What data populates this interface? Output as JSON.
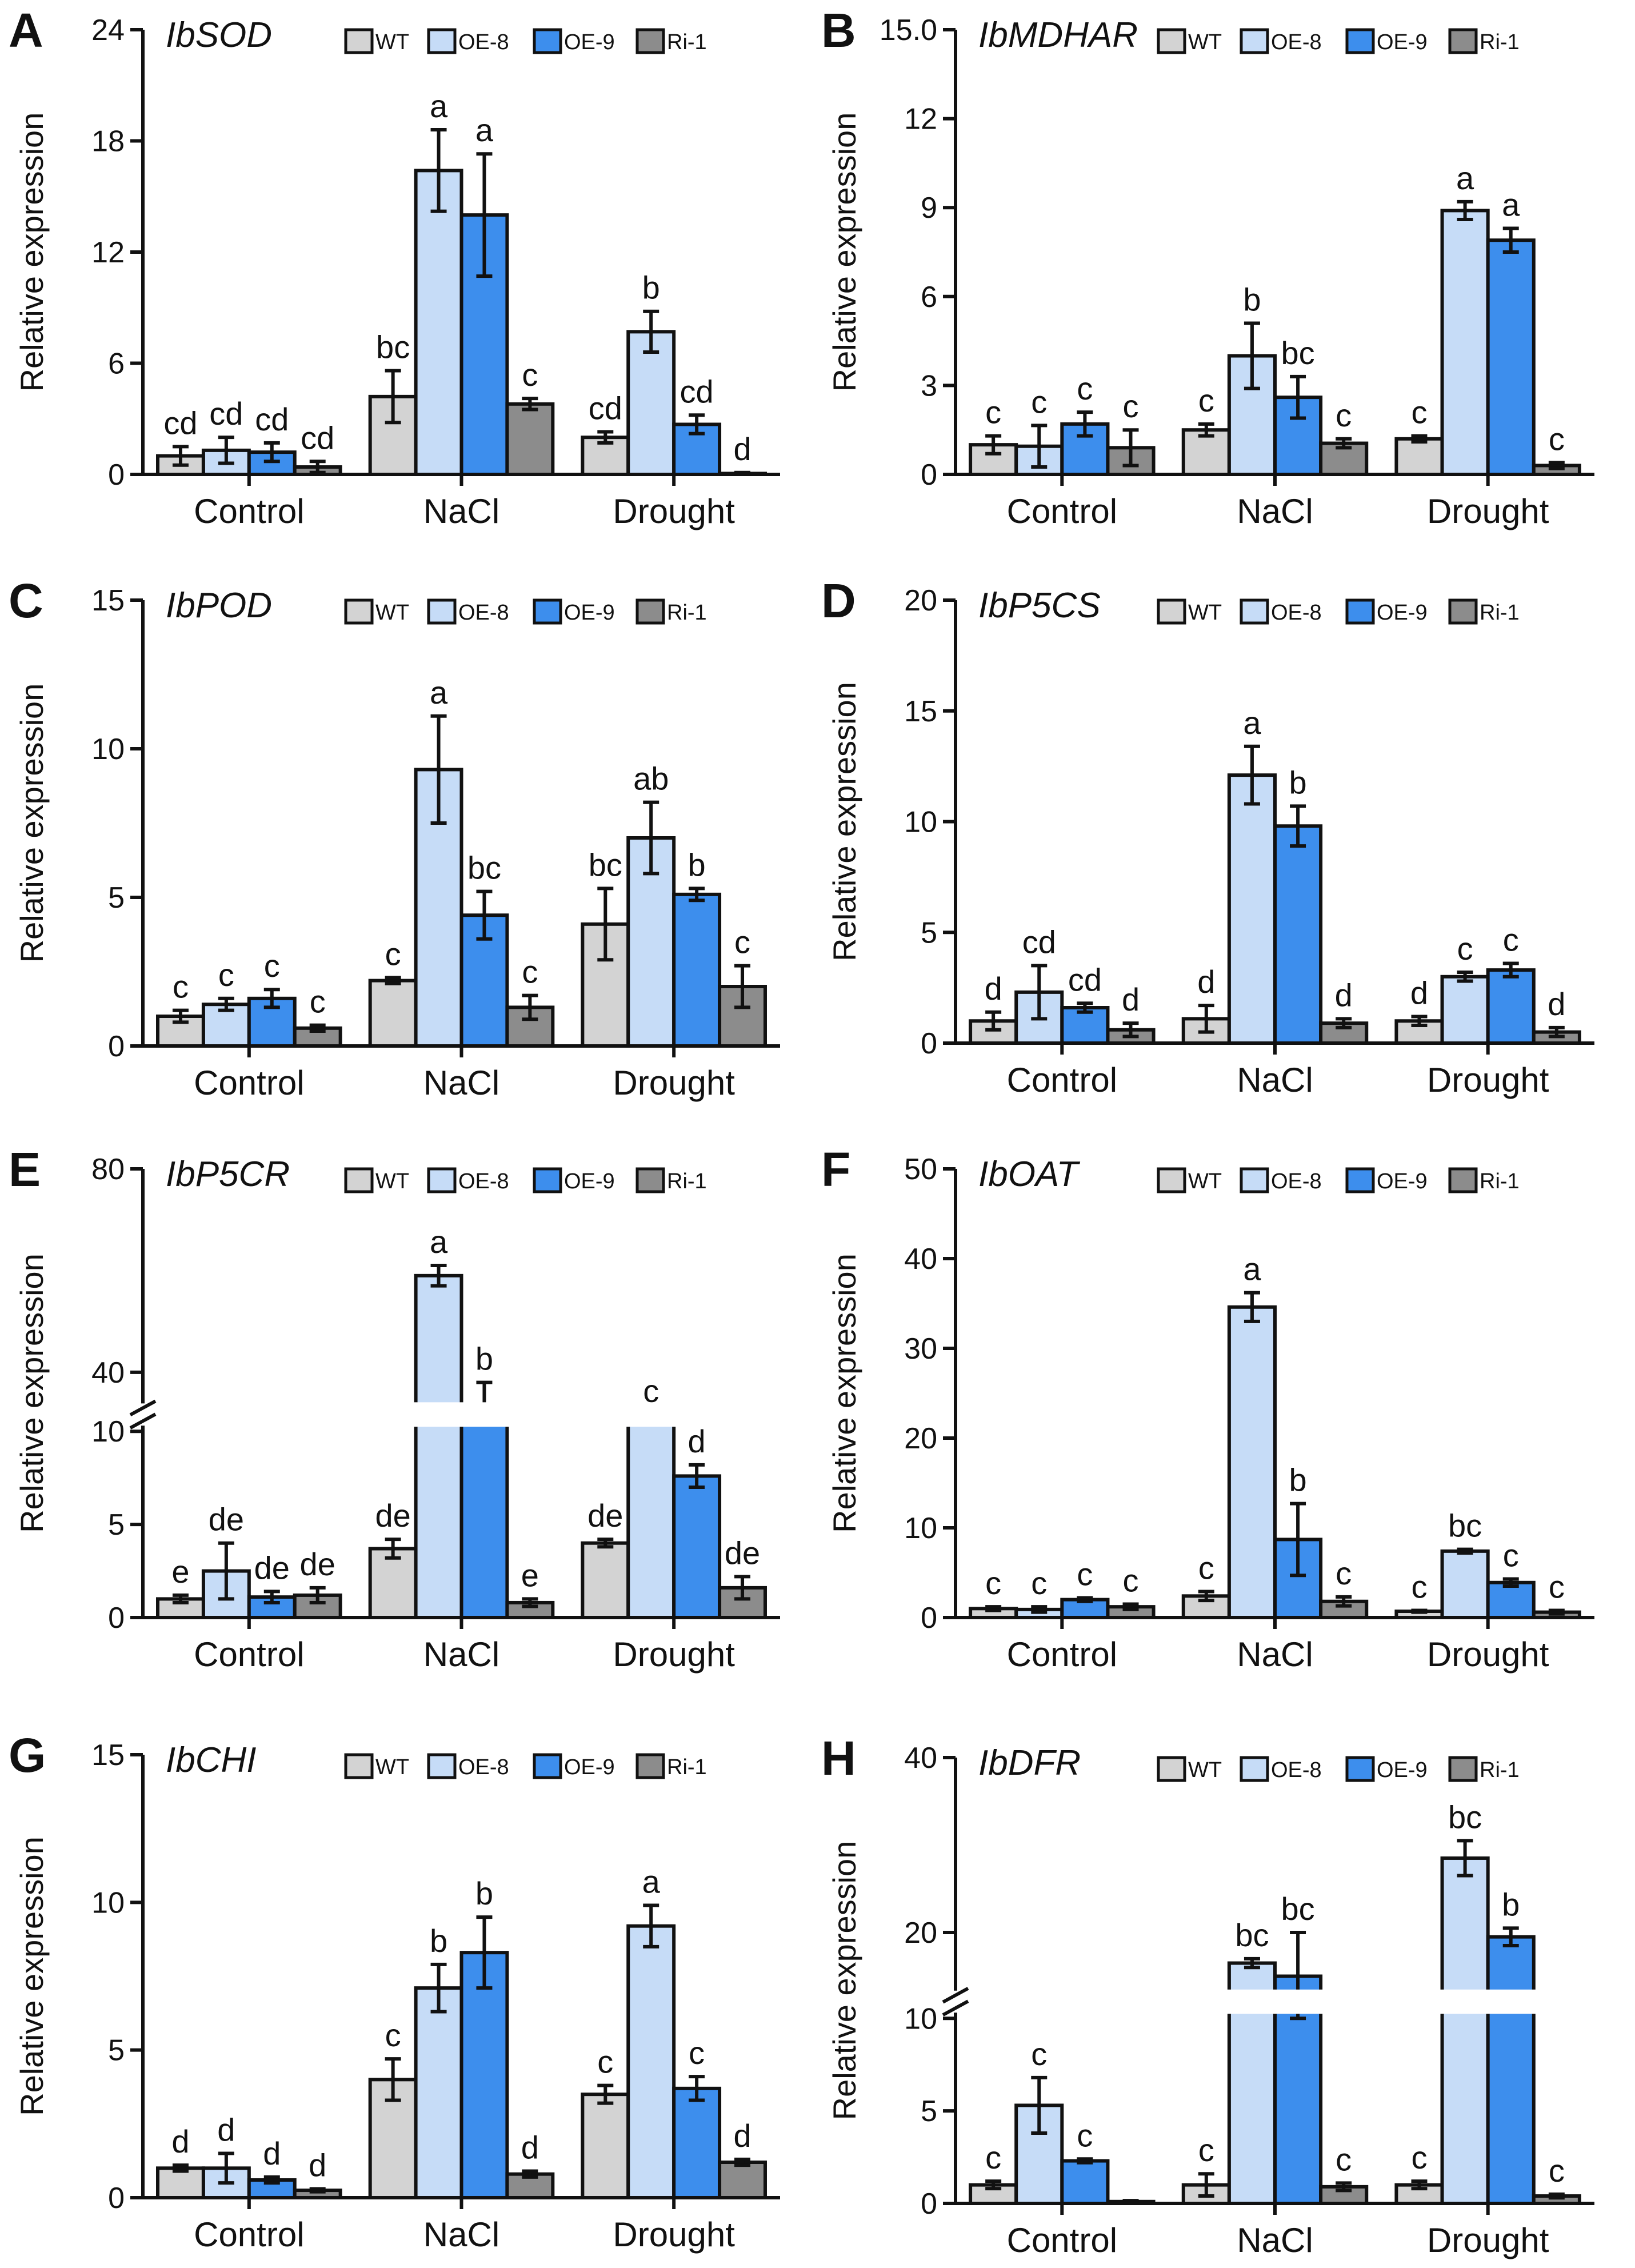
{
  "figure": {
    "colors": {
      "WT": "#d3d3d3",
      "OE-8": "#c6dcf7",
      "OE-9": "#3d8eed",
      "Ri-1": "#8c8c8c"
    }
  },
  "chart_data": [
    {
      "panel": "A",
      "title": "IbSOD",
      "type": "bar",
      "ylabel": "Relative expression",
      "categories": [
        "Control",
        "NaCl",
        "Drought"
      ],
      "ylim": [
        0,
        24
      ],
      "yticks": [
        "0",
        "6",
        "12",
        "18",
        "24"
      ],
      "ytick_values": [
        0,
        6,
        12,
        18,
        24
      ],
      "legend": [
        "WT",
        "OE-8",
        "OE-9",
        "Ri-1"
      ],
      "series": [
        {
          "name": "WT",
          "values": [
            1.0,
            4.2,
            2.0
          ],
          "errors": [
            0.5,
            1.4,
            0.3
          ],
          "labels": [
            "cd",
            "bc",
            "cd"
          ]
        },
        {
          "name": "OE-8",
          "values": [
            1.3,
            16.4,
            7.7
          ],
          "errors": [
            0.7,
            2.2,
            1.1
          ],
          "labels": [
            "cd",
            "a",
            "b"
          ]
        },
        {
          "name": "OE-9",
          "values": [
            1.2,
            14.0,
            2.7
          ],
          "errors": [
            0.5,
            3.3,
            0.5
          ],
          "labels": [
            "cd",
            "a",
            "cd"
          ]
        },
        {
          "name": "Ri-1",
          "values": [
            0.4,
            3.8,
            0.05
          ],
          "errors": [
            0.3,
            0.3,
            0.05
          ],
          "labels": [
            "cd",
            "c",
            "d"
          ]
        }
      ]
    },
    {
      "panel": "B",
      "title": "IbMDHAR",
      "type": "bar",
      "ylabel": "Relative expression",
      "categories": [
        "Control",
        "NaCl",
        "Drought"
      ],
      "ylim": [
        0,
        15
      ],
      "yticks": [
        "0",
        "3",
        "6",
        "9",
        "12",
        "15.0"
      ],
      "ytick_values": [
        0,
        3,
        6,
        9,
        12,
        15
      ],
      "legend": [
        "WT",
        "OE-8",
        "OE-9",
        "Ri-1"
      ],
      "series": [
        {
          "name": "WT",
          "values": [
            1.0,
            1.5,
            1.2
          ],
          "errors": [
            0.3,
            0.2,
            0.1
          ],
          "labels": [
            "c",
            "c",
            "c"
          ]
        },
        {
          "name": "OE-8",
          "values": [
            0.95,
            4.0,
            8.9
          ],
          "errors": [
            0.7,
            1.1,
            0.3
          ],
          "labels": [
            "c",
            "b",
            "a"
          ]
        },
        {
          "name": "OE-9",
          "values": [
            1.7,
            2.6,
            7.9
          ],
          "errors": [
            0.4,
            0.7,
            0.4
          ],
          "labels": [
            "c",
            "bc",
            "a"
          ]
        },
        {
          "name": "Ri-1",
          "values": [
            0.9,
            1.05,
            0.3
          ],
          "errors": [
            0.6,
            0.15,
            0.1
          ],
          "labels": [
            "c",
            "c",
            "c"
          ]
        }
      ]
    },
    {
      "panel": "C",
      "title": "IbPOD",
      "type": "bar",
      "ylabel": "Relative expression",
      "categories": [
        "Control",
        "NaCl",
        "Drought"
      ],
      "ylim": [
        0,
        15
      ],
      "yticks": [
        "0",
        "5",
        "10",
        "15"
      ],
      "ytick_values": [
        0,
        5,
        10,
        15
      ],
      "legend": [
        "WT",
        "OE-8",
        "OE-9",
        "Ri-1"
      ],
      "series": [
        {
          "name": "WT",
          "values": [
            1.0,
            2.2,
            4.1
          ],
          "errors": [
            0.2,
            0.1,
            1.2
          ],
          "labels": [
            "c",
            "c",
            "bc"
          ]
        },
        {
          "name": "OE-8",
          "values": [
            1.4,
            9.3,
            7.0
          ],
          "errors": [
            0.2,
            1.8,
            1.2
          ],
          "labels": [
            "c",
            "a",
            "ab"
          ]
        },
        {
          "name": "OE-9",
          "values": [
            1.6,
            4.4,
            5.1
          ],
          "errors": [
            0.3,
            0.8,
            0.2
          ],
          "labels": [
            "c",
            "bc",
            "b"
          ]
        },
        {
          "name": "Ri-1",
          "values": [
            0.6,
            1.3,
            2.0
          ],
          "errors": [
            0.1,
            0.4,
            0.7
          ],
          "labels": [
            "c",
            "c",
            "c"
          ]
        }
      ]
    },
    {
      "panel": "D",
      "title": "IbP5CS",
      "type": "bar",
      "ylabel": "Relative expression",
      "categories": [
        "Control",
        "NaCl",
        "Drought"
      ],
      "ylim": [
        0,
        20
      ],
      "yticks": [
        "0",
        "5",
        "10",
        "15",
        "20"
      ],
      "ytick_values": [
        0,
        5,
        10,
        15,
        20
      ],
      "legend": [
        "WT",
        "OE-8",
        "OE-9",
        "Ri-1"
      ],
      "series": [
        {
          "name": "WT",
          "values": [
            1.0,
            1.1,
            1.0
          ],
          "errors": [
            0.4,
            0.6,
            0.2
          ],
          "labels": [
            "d",
            "d",
            "d"
          ]
        },
        {
          "name": "OE-8",
          "values": [
            2.3,
            12.1,
            3.0
          ],
          "errors": [
            1.2,
            1.3,
            0.2
          ],
          "labels": [
            "cd",
            "a",
            "c"
          ]
        },
        {
          "name": "OE-9",
          "values": [
            1.6,
            9.8,
            3.3
          ],
          "errors": [
            0.2,
            0.9,
            0.3
          ],
          "labels": [
            "cd",
            "b",
            "c"
          ]
        },
        {
          "name": "Ri-1",
          "values": [
            0.6,
            0.9,
            0.5
          ],
          "errors": [
            0.3,
            0.2,
            0.2
          ],
          "labels": [
            "d",
            "d",
            "d"
          ]
        }
      ]
    },
    {
      "panel": "E",
      "title": "IbP5CR",
      "type": "bar",
      "ylabel": "Relative expression",
      "categories": [
        "Control",
        "NaCl",
        "Drought"
      ],
      "ylim": [
        0,
        80
      ],
      "yaxis_break": [
        10,
        35
      ],
      "yticks": [
        "0",
        "5",
        "10",
        "40",
        "80"
      ],
      "ytick_values": [
        0,
        5,
        10,
        40,
        80
      ],
      "legend": [
        "WT",
        "OE-8",
        "OE-9",
        "Ri-1"
      ],
      "series": [
        {
          "name": "WT",
          "values": [
            1.0,
            3.7,
            4.0
          ],
          "errors": [
            0.2,
            0.5,
            0.2
          ],
          "labels": [
            "e",
            "de",
            "de"
          ]
        },
        {
          "name": "OE-8",
          "values": [
            2.5,
            59,
            21.5
          ],
          "errors": [
            1.5,
            2.0,
            6.0
          ],
          "labels": [
            "de",
            "a",
            "c"
          ]
        },
        {
          "name": "OE-9",
          "values": [
            1.1,
            34,
            7.6
          ],
          "errors": [
            0.3,
            4.0,
            0.6
          ],
          "labels": [
            "de",
            "b",
            "d"
          ]
        },
        {
          "name": "Ri-1",
          "values": [
            1.2,
            0.8,
            1.6
          ],
          "errors": [
            0.4,
            0.2,
            0.6
          ],
          "labels": [
            "de",
            "e",
            "de"
          ]
        }
      ]
    },
    {
      "panel": "F",
      "title": "IbOAT",
      "type": "bar",
      "ylabel": "Relative expression",
      "categories": [
        "Control",
        "NaCl",
        "Drought"
      ],
      "ylim": [
        0,
        50
      ],
      "yticks": [
        "0",
        "10",
        "20",
        "30",
        "40",
        "50"
      ],
      "ytick_values": [
        0,
        10,
        20,
        30,
        40,
        50
      ],
      "legend": [
        "WT",
        "OE-8",
        "OE-9",
        "Ri-1"
      ],
      "series": [
        {
          "name": "WT",
          "values": [
            1.0,
            2.4,
            0.7
          ],
          "errors": [
            0.2,
            0.5,
            0.1
          ],
          "labels": [
            "c",
            "c",
            "c"
          ]
        },
        {
          "name": "OE-8",
          "values": [
            0.9,
            34.6,
            7.4
          ],
          "errors": [
            0.3,
            1.6,
            0.2
          ],
          "labels": [
            "c",
            "a",
            "bc"
          ]
        },
        {
          "name": "OE-9",
          "values": [
            2.0,
            8.7,
            3.9
          ],
          "errors": [
            0.2,
            4.0,
            0.4
          ],
          "labels": [
            "c",
            "b",
            "c"
          ]
        },
        {
          "name": "Ri-1",
          "values": [
            1.2,
            1.8,
            0.6
          ],
          "errors": [
            0.3,
            0.5,
            0.2
          ],
          "labels": [
            "c",
            "c",
            "c"
          ]
        }
      ]
    },
    {
      "panel": "G",
      "title": "IbCHI",
      "type": "bar",
      "ylabel": "Relative expression",
      "categories": [
        "Control",
        "NaCl",
        "Drought"
      ],
      "ylim": [
        0,
        15
      ],
      "yticks": [
        "0",
        "5",
        "10",
        "15"
      ],
      "ytick_values": [
        0,
        5,
        10,
        15
      ],
      "legend": [
        "WT",
        "OE-8",
        "OE-9",
        "Ri-1"
      ],
      "series": [
        {
          "name": "WT",
          "values": [
            1.0,
            4.0,
            3.5
          ],
          "errors": [
            0.1,
            0.7,
            0.3
          ],
          "labels": [
            "d",
            "c",
            "c"
          ]
        },
        {
          "name": "OE-8",
          "values": [
            1.0,
            7.1,
            9.2
          ],
          "errors": [
            0.5,
            0.8,
            0.7
          ],
          "labels": [
            "d",
            "b",
            "a"
          ]
        },
        {
          "name": "OE-9",
          "values": [
            0.6,
            8.3,
            3.7
          ],
          "errors": [
            0.1,
            1.2,
            0.4
          ],
          "labels": [
            "d",
            "b",
            "c"
          ]
        },
        {
          "name": "Ri-1",
          "values": [
            0.25,
            0.8,
            1.2
          ],
          "errors": [
            0.05,
            0.1,
            0.1
          ],
          "labels": [
            "d",
            "d",
            "d"
          ]
        }
      ]
    },
    {
      "panel": "H",
      "title": "IbDFR",
      "type": "bar",
      "ylabel": "Relative expression",
      "categories": [
        "Control",
        "NaCl",
        "Drought"
      ],
      "ylim": [
        0,
        40
      ],
      "yaxis_break": [
        10,
        14
      ],
      "yticks": [
        "0",
        "5",
        "10",
        "20",
        "40"
      ],
      "ytick_values": [
        0,
        5,
        10,
        20,
        40
      ],
      "legend": [
        "WT",
        "OE-8",
        "OE-9",
        "Ri-1"
      ],
      "series": [
        {
          "name": "WT",
          "values": [
            1.0,
            1.0,
            1.0
          ],
          "errors": [
            0.2,
            0.6,
            0.2
          ],
          "labels": [
            "c",
            "c",
            "c"
          ]
        },
        {
          "name": "OE-8",
          "values": [
            5.3,
            16.5,
            28.5
          ],
          "errors": [
            1.5,
            0.5,
            2.0
          ],
          "labels": [
            "c",
            "bc",
            "bc"
          ]
        },
        {
          "name": "OE-9",
          "values": [
            2.3,
            15,
            19.5
          ],
          "errors": [
            0.1,
            5.0,
            1.0
          ],
          "labels": [
            "c",
            "bc",
            "b"
          ]
        },
        {
          "name": "Ri-1",
          "values": [
            0.1,
            0.9,
            0.4
          ],
          "errors": [
            0.05,
            0.2,
            0.1
          ],
          "labels": [
            "",
            "c",
            "c"
          ]
        }
      ]
    }
  ]
}
